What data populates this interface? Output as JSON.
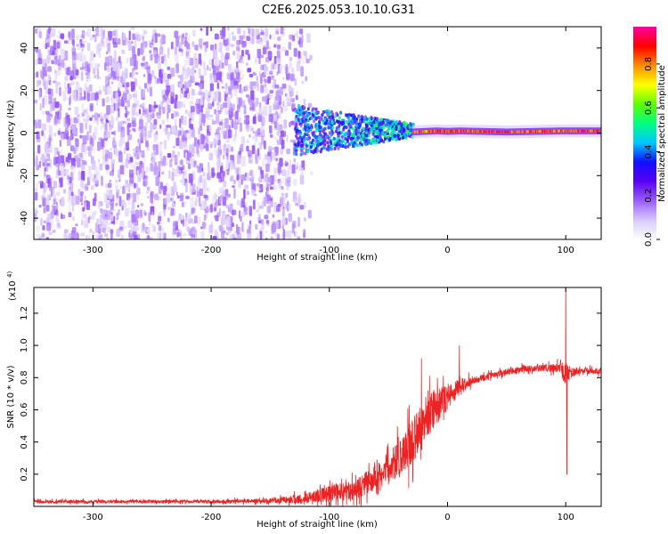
{
  "title": "C2E6.2025.053.10.10.G31",
  "chart_data": [
    {
      "type": "heatmap",
      "xlabel": "Height of straight line (km)",
      "ylabel": "Frequency (Hz)",
      "xlim": [
        -350,
        130
      ],
      "ylim": [
        -50,
        50
      ],
      "x_ticks": [
        -300,
        -200,
        -100,
        0,
        100
      ],
      "y_ticks": [
        -40,
        -20,
        0,
        20,
        40
      ],
      "colorbar": {
        "label": "Normalized spectral amplitude",
        "range": [
          0,
          0.97
        ],
        "ticks": [
          0.0,
          0.2,
          0.4,
          0.6,
          0.8
        ],
        "colormap": [
          "#ffffff",
          "#d8c8ff",
          "#9a5cff",
          "#5a00f0",
          "#1010ff",
          "#00c8ff",
          "#00ff80",
          "#60ff00",
          "#ffff00",
          "#ff8c00",
          "#ff0000",
          "#ff00a0"
        ]
      },
      "regions": [
        {
          "x_range": [
            -350,
            -130
          ],
          "freq_range": [
            -50,
            50
          ],
          "amplitude": "0.05-0.15",
          "pattern": "noise"
        },
        {
          "x_range": [
            -130,
            -30
          ],
          "freq_range": [
            -10,
            12
          ],
          "amplitude": "0.2-0.5"
        },
        {
          "x_range": [
            -30,
            130
          ],
          "freq_range": [
            -1.5,
            1.5
          ],
          "amplitude": "0.7-0.95"
        }
      ],
      "centerline": [
        {
          "x": -30,
          "f": 0.5
        },
        {
          "x": -10,
          "f": 1.0
        },
        {
          "x": 0,
          "f": 0.8
        },
        {
          "x": 10,
          "f": 1.0
        },
        {
          "x": 50,
          "f": 0.5
        },
        {
          "x": 95,
          "f": 1.0
        },
        {
          "x": 130,
          "f": 1.0
        }
      ]
    },
    {
      "type": "line",
      "xlabel": "Height of straight line (km)",
      "ylabel": "SNR (10 * v/v)",
      "yscale_label": "(x10",
      "yscale_exp": "4",
      "xlim": [
        -350,
        130
      ],
      "ylim": [
        0,
        1.36
      ],
      "x_ticks": [
        -300,
        -200,
        -100,
        0,
        100
      ],
      "y_ticks": [
        0.2,
        0.4,
        0.6,
        0.8,
        1.0,
        1.2
      ],
      "color": "#ee2222",
      "series": [
        {
          "x": [
            -350,
            -300,
            -250,
            -200,
            -150,
            -120,
            -100,
            -80,
            -60,
            -40,
            -30,
            -20,
            -10,
            0,
            10,
            20,
            30,
            40,
            60,
            80,
            95,
            100,
            105,
            110,
            130
          ],
          "values": [
            0.03,
            0.03,
            0.03,
            0.03,
            0.035,
            0.05,
            0.08,
            0.1,
            0.18,
            0.3,
            0.4,
            0.52,
            0.62,
            0.68,
            0.74,
            0.78,
            0.8,
            0.82,
            0.85,
            0.86,
            0.86,
            0.82,
            0.83,
            0.84,
            0.84
          ],
          "noise": [
            0.01,
            0.01,
            0.01,
            0.01,
            0.015,
            0.03,
            0.05,
            0.06,
            0.08,
            0.12,
            0.14,
            0.15,
            0.12,
            0.08,
            0.05,
            0.03,
            0.02,
            0.02,
            0.02,
            0.02,
            0.03,
            0.08,
            0.03,
            0.02,
            0.02
          ]
        }
      ],
      "spikes": [
        {
          "x": 10,
          "value": 1.0
        },
        {
          "x": -22,
          "value": 0.92
        },
        {
          "x": 100,
          "value": 1.38
        },
        {
          "x": 101,
          "value": 0.2
        }
      ]
    }
  ]
}
